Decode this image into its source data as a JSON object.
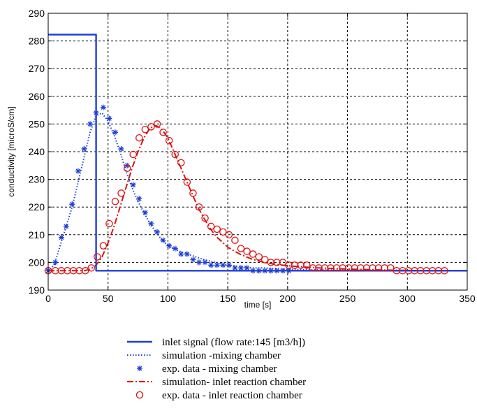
{
  "chart_data": {
    "type": "line",
    "title": "",
    "xlabel": "time [s]",
    "ylabel": "conductivity [microS/cm]",
    "xlim": [
      0,
      350
    ],
    "ylim": [
      190,
      290
    ],
    "xticks": [
      0,
      50,
      100,
      150,
      200,
      250,
      300,
      350
    ],
    "yticks": [
      190,
      200,
      210,
      220,
      230,
      240,
      250,
      260,
      270,
      280,
      290
    ],
    "grid": true,
    "legend_position": "below-plot",
    "series": [
      {
        "name": "inlet signal (flow rate:145 [m3/h])",
        "style": "solid",
        "color": "#1f3fd8",
        "x": [
          0,
          40,
          40,
          40,
          350
        ],
        "y": [
          282.3,
          282.3,
          282.3,
          197,
          197
        ]
      },
      {
        "name": "simulation -mixing chamber",
        "style": "dotted",
        "color": "#1f3fd8",
        "x": [
          0,
          5,
          10,
          15,
          20,
          25,
          30,
          35,
          40,
          45,
          50,
          55,
          60,
          65,
          70,
          75,
          80,
          85,
          90,
          95,
          100,
          110,
          120,
          130,
          140,
          150,
          160,
          170,
          180,
          190,
          200,
          225,
          250,
          300,
          350
        ],
        "y": [
          197,
          199,
          206,
          213,
          220,
          229,
          238,
          247,
          253,
          254,
          251,
          246,
          240,
          233,
          227,
          222,
          218,
          214,
          211,
          208,
          206,
          204,
          202.5,
          201,
          200,
          199,
          198.5,
          198,
          198,
          197.8,
          197.5,
          197.3,
          197.2,
          197.1,
          197
        ]
      },
      {
        "name": "exp. data - mixing chamber",
        "style": "star",
        "color": "#1f3fd8",
        "x": [
          0,
          6,
          11,
          15,
          20,
          25,
          30,
          35,
          40,
          46,
          51,
          56,
          61,
          66,
          71,
          76,
          81,
          86,
          91,
          96,
          101,
          106,
          111,
          116,
          121,
          126,
          131,
          136,
          141,
          146,
          151,
          156,
          161,
          166,
          171,
          176,
          181,
          186,
          191,
          196,
          201
        ],
        "y": [
          197,
          200,
          209,
          213,
          221,
          233,
          241,
          250,
          254,
          256,
          252,
          247,
          241,
          235,
          228,
          223,
          218,
          214,
          211,
          208,
          206,
          205,
          203,
          203,
          201,
          200,
          200,
          199,
          199,
          199,
          199,
          198,
          198,
          198,
          197,
          197,
          197,
          197,
          197,
          197,
          197
        ]
      },
      {
        "name": "simulation- inlet reaction chamber",
        "style": "dashdot",
        "color": "#dd1111",
        "x": [
          0,
          30,
          35,
          40,
          45,
          50,
          55,
          60,
          65,
          70,
          75,
          80,
          85,
          90,
          95,
          100,
          105,
          110,
          115,
          120,
          125,
          130,
          135,
          140,
          150,
          160,
          170,
          180,
          190,
          200,
          225,
          250,
          275,
          300,
          350
        ],
        "y": [
          197,
          197,
          197.5,
          199,
          202,
          207,
          213,
          220,
          227,
          234,
          240,
          245,
          248.5,
          249.5,
          248,
          245,
          240,
          235,
          230,
          225,
          220,
          216,
          212.5,
          209.5,
          205.5,
          203,
          201.2,
          200,
          199.3,
          198.8,
          198,
          197.6,
          197.3,
          197.1,
          197
        ]
      },
      {
        "name": "exp. data - inlet reaction chamber",
        "style": "circle",
        "color": "#dd1111",
        "x": [
          0,
          6,
          11,
          16,
          21,
          26,
          31,
          36,
          41,
          46,
          51,
          56,
          61,
          66,
          71,
          76,
          81,
          86,
          91,
          96,
          101,
          106,
          111,
          116,
          121,
          126,
          131,
          136,
          141,
          146,
          151,
          156,
          161,
          166,
          171,
          176,
          181,
          186,
          191,
          196,
          201,
          206,
          211,
          216,
          221,
          226,
          231,
          236,
          241,
          246,
          251,
          256,
          261,
          266,
          271,
          276,
          281,
          286,
          291,
          296,
          301,
          306,
          311,
          316,
          321,
          326,
          331
        ],
        "y": [
          197,
          197,
          197,
          197,
          197,
          197,
          197,
          198,
          202,
          206,
          214,
          222,
          225,
          234,
          239,
          245,
          248,
          249,
          250,
          247,
          244,
          239,
          236,
          229,
          225,
          220,
          216,
          213,
          212,
          211,
          210,
          208,
          205,
          204,
          203,
          202,
          201,
          200,
          200,
          200,
          199,
          199,
          199,
          199,
          198,
          198,
          198,
          198,
          198,
          198,
          198,
          198,
          198,
          198,
          198,
          198,
          198,
          198,
          197,
          197,
          197,
          197,
          197,
          197,
          197,
          197,
          197
        ]
      }
    ]
  }
}
